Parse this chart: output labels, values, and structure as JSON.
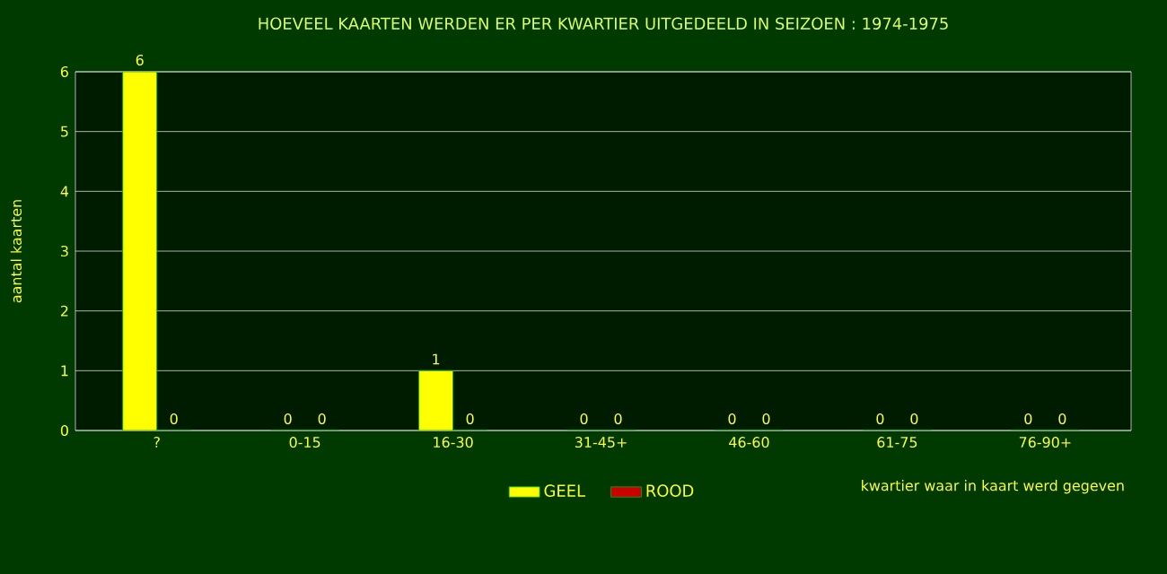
{
  "chart_data": {
    "type": "bar",
    "title": "HOEVEEL KAARTEN WERDEN ER PER KWARTIER UITGEDEELD IN SEIZOEN : 1974-1975",
    "xlabel": "kwartier waar in kaart werd gegeven",
    "ylabel": "aantal kaarten",
    "categories": [
      "?",
      "0-15",
      "16-30",
      "31-45+",
      "46-60",
      "61-75",
      "76-90+"
    ],
    "series": [
      {
        "name": "GEEL",
        "color": "#ffff00",
        "values": [
          6,
          0,
          1,
          0,
          0,
          0,
          0
        ]
      },
      {
        "name": "ROOD",
        "color": "#cc0000",
        "values": [
          0,
          0,
          0,
          0,
          0,
          0,
          0
        ]
      }
    ],
    "ylim": [
      0,
      6
    ],
    "yticks": [
      0,
      1,
      2,
      3,
      4,
      5,
      6
    ],
    "grid": "y",
    "legend": "bottom",
    "data_labels": true
  }
}
